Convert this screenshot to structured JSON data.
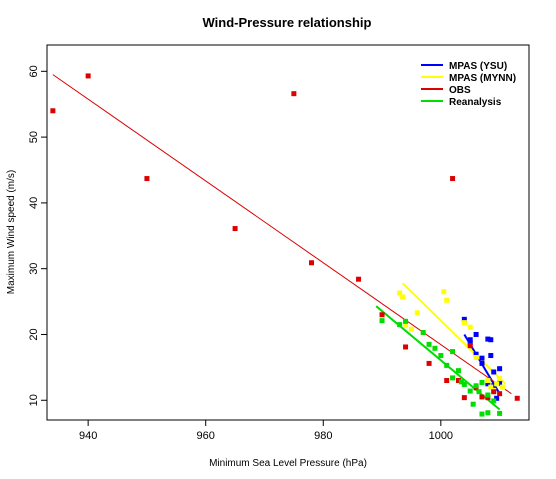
{
  "chart_data": {
    "type": "scatter",
    "title": "Wind-Pressure relationship",
    "xlabel": "Minimum Sea Level Pressure (hPa)",
    "ylabel": "Maximum Wind speed (m/s)",
    "xlim": [
      933,
      1015
    ],
    "ylim": [
      7,
      64
    ],
    "xticks": [
      940,
      960,
      980,
      1000
    ],
    "yticks": [
      10,
      20,
      30,
      40,
      50,
      60
    ],
    "grid": false,
    "legend_position": "top-right",
    "series": [
      {
        "name": "MPAS (YSU)",
        "color": "#0000ff",
        "points": [
          [
            1004,
            22.3
          ],
          [
            1005,
            19.2
          ],
          [
            1005,
            18.7
          ],
          [
            1006,
            20
          ],
          [
            1006,
            17
          ],
          [
            1007,
            15.6
          ],
          [
            1007,
            16.4
          ],
          [
            1008,
            19.3
          ],
          [
            1008,
            12.5
          ],
          [
            1008.5,
            16.8
          ],
          [
            1008.5,
            19.2
          ],
          [
            1009,
            14.3
          ],
          [
            1009,
            12.2
          ],
          [
            1009,
            11.5
          ],
          [
            1009.5,
            10.3
          ],
          [
            1010,
            14.8
          ],
          [
            1010,
            12.7
          ]
        ],
        "fit": [
          [
            1004,
            20
          ],
          [
            1010,
            11
          ]
        ]
      },
      {
        "name": "MPAS (MYNN)",
        "color": "#ffff00",
        "points": [
          [
            993,
            26.3
          ],
          [
            993.5,
            25.7
          ],
          [
            994,
            21.4
          ],
          [
            995,
            20.8
          ],
          [
            996,
            23.3
          ],
          [
            1000.5,
            26.5
          ],
          [
            1001,
            25.2
          ],
          [
            1004,
            21.8
          ],
          [
            1005,
            21.1
          ],
          [
            1006,
            16.5
          ],
          [
            1008,
            13
          ],
          [
            1008.5,
            12
          ],
          [
            1009,
            11.5
          ],
          [
            1009.5,
            12.5
          ],
          [
            1010,
            13.3
          ],
          [
            1010.5,
            12
          ]
        ],
        "fit": [
          [
            993.5,
            27.8
          ],
          [
            1011,
            12.5
          ]
        ]
      },
      {
        "name": "OBS",
        "color": "#dd0000",
        "points": [
          [
            934,
            54
          ],
          [
            940,
            59.3
          ],
          [
            950,
            43.7
          ],
          [
            965,
            36.1
          ],
          [
            975,
            56.6
          ],
          [
            978,
            30.9
          ],
          [
            986,
            28.4
          ],
          [
            990,
            23
          ],
          [
            994,
            18.1
          ],
          [
            998,
            15.6
          ],
          [
            1001,
            13
          ],
          [
            1002,
            43.7
          ],
          [
            1003,
            13
          ],
          [
            1004,
            10.4
          ],
          [
            1005,
            18.3
          ],
          [
            1006,
            11.9
          ],
          [
            1007,
            10.5
          ],
          [
            1008,
            10.4
          ],
          [
            1009,
            11.3
          ],
          [
            1010,
            11
          ],
          [
            1013,
            10.3
          ]
        ],
        "fit": [
          [
            934,
            59.5
          ],
          [
            1012,
            11
          ]
        ]
      },
      {
        "name": "Reanalysis",
        "color": "#00dd00",
        "points": [
          [
            990,
            22.1
          ],
          [
            993,
            21.5
          ],
          [
            994,
            22
          ],
          [
            997,
            20.3
          ],
          [
            998,
            18.5
          ],
          [
            999,
            17.9
          ],
          [
            1000,
            16.8
          ],
          [
            1001,
            15.3
          ],
          [
            1002,
            17.4
          ],
          [
            1002,
            13.4
          ],
          [
            1003,
            14.5
          ],
          [
            1003.5,
            12.8
          ],
          [
            1004,
            12.4
          ],
          [
            1005,
            11.4
          ],
          [
            1005.5,
            9.4
          ],
          [
            1006,
            12.2
          ],
          [
            1006.5,
            11.3
          ],
          [
            1007,
            12.7
          ],
          [
            1007,
            7.9
          ],
          [
            1008,
            10.8
          ],
          [
            1008,
            8.1
          ],
          [
            1009,
            9.9
          ],
          [
            1010,
            8
          ]
        ],
        "fit": [
          [
            989,
            24.3
          ],
          [
            1010,
            8.6
          ]
        ]
      }
    ]
  }
}
